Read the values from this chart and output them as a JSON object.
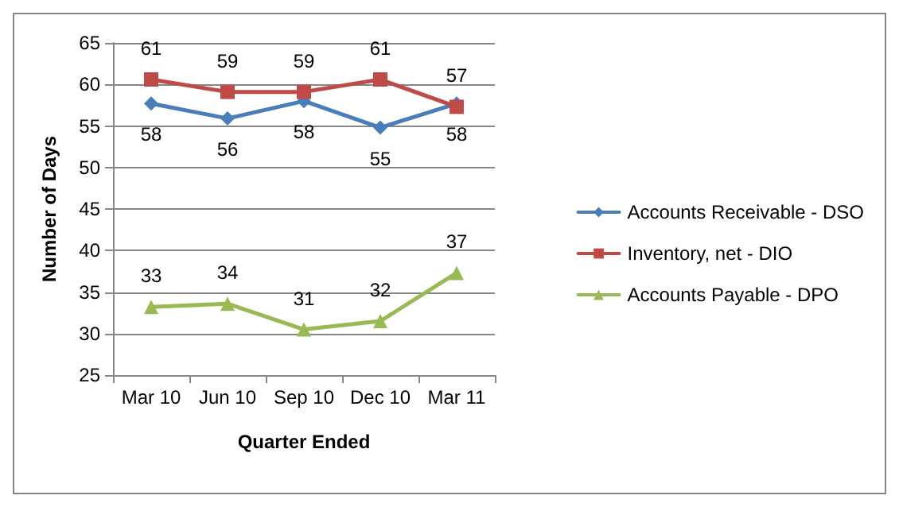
{
  "chart_data": {
    "type": "line",
    "xlabel": "Quarter Ended",
    "ylabel": "Number of Days",
    "categories": [
      "Mar 10",
      "Jun 10",
      "Sep 10",
      "Dec 10",
      "Mar 11"
    ],
    "series": [
      {
        "name": "Accounts Receivable - DSO",
        "color": "#4a7ebb",
        "marker": "diamond",
        "values": [
          57.7,
          55.9,
          58.0,
          54.8,
          57.7
        ],
        "value_labels": [
          "58",
          "56",
          "58",
          "55",
          "58"
        ]
      },
      {
        "name": "Inventory, net - DIO",
        "color": "#be4b48",
        "marker": "square",
        "values": [
          60.6,
          59.1,
          59.1,
          60.6,
          57.3
        ],
        "value_labels": [
          "61",
          "59",
          "59",
          "61",
          "57"
        ]
      },
      {
        "name": "Accounts Payable - DPO",
        "color": "#98b954",
        "marker": "triangle",
        "values": [
          33.2,
          33.6,
          30.5,
          31.5,
          37.3
        ],
        "value_labels": [
          "33",
          "34",
          "31",
          "32",
          "37"
        ]
      }
    ],
    "ylim": [
      25,
      65
    ],
    "yticks": [
      25,
      30,
      35,
      40,
      45,
      50,
      55,
      60,
      65
    ],
    "grid": "y",
    "legend": "right"
  }
}
